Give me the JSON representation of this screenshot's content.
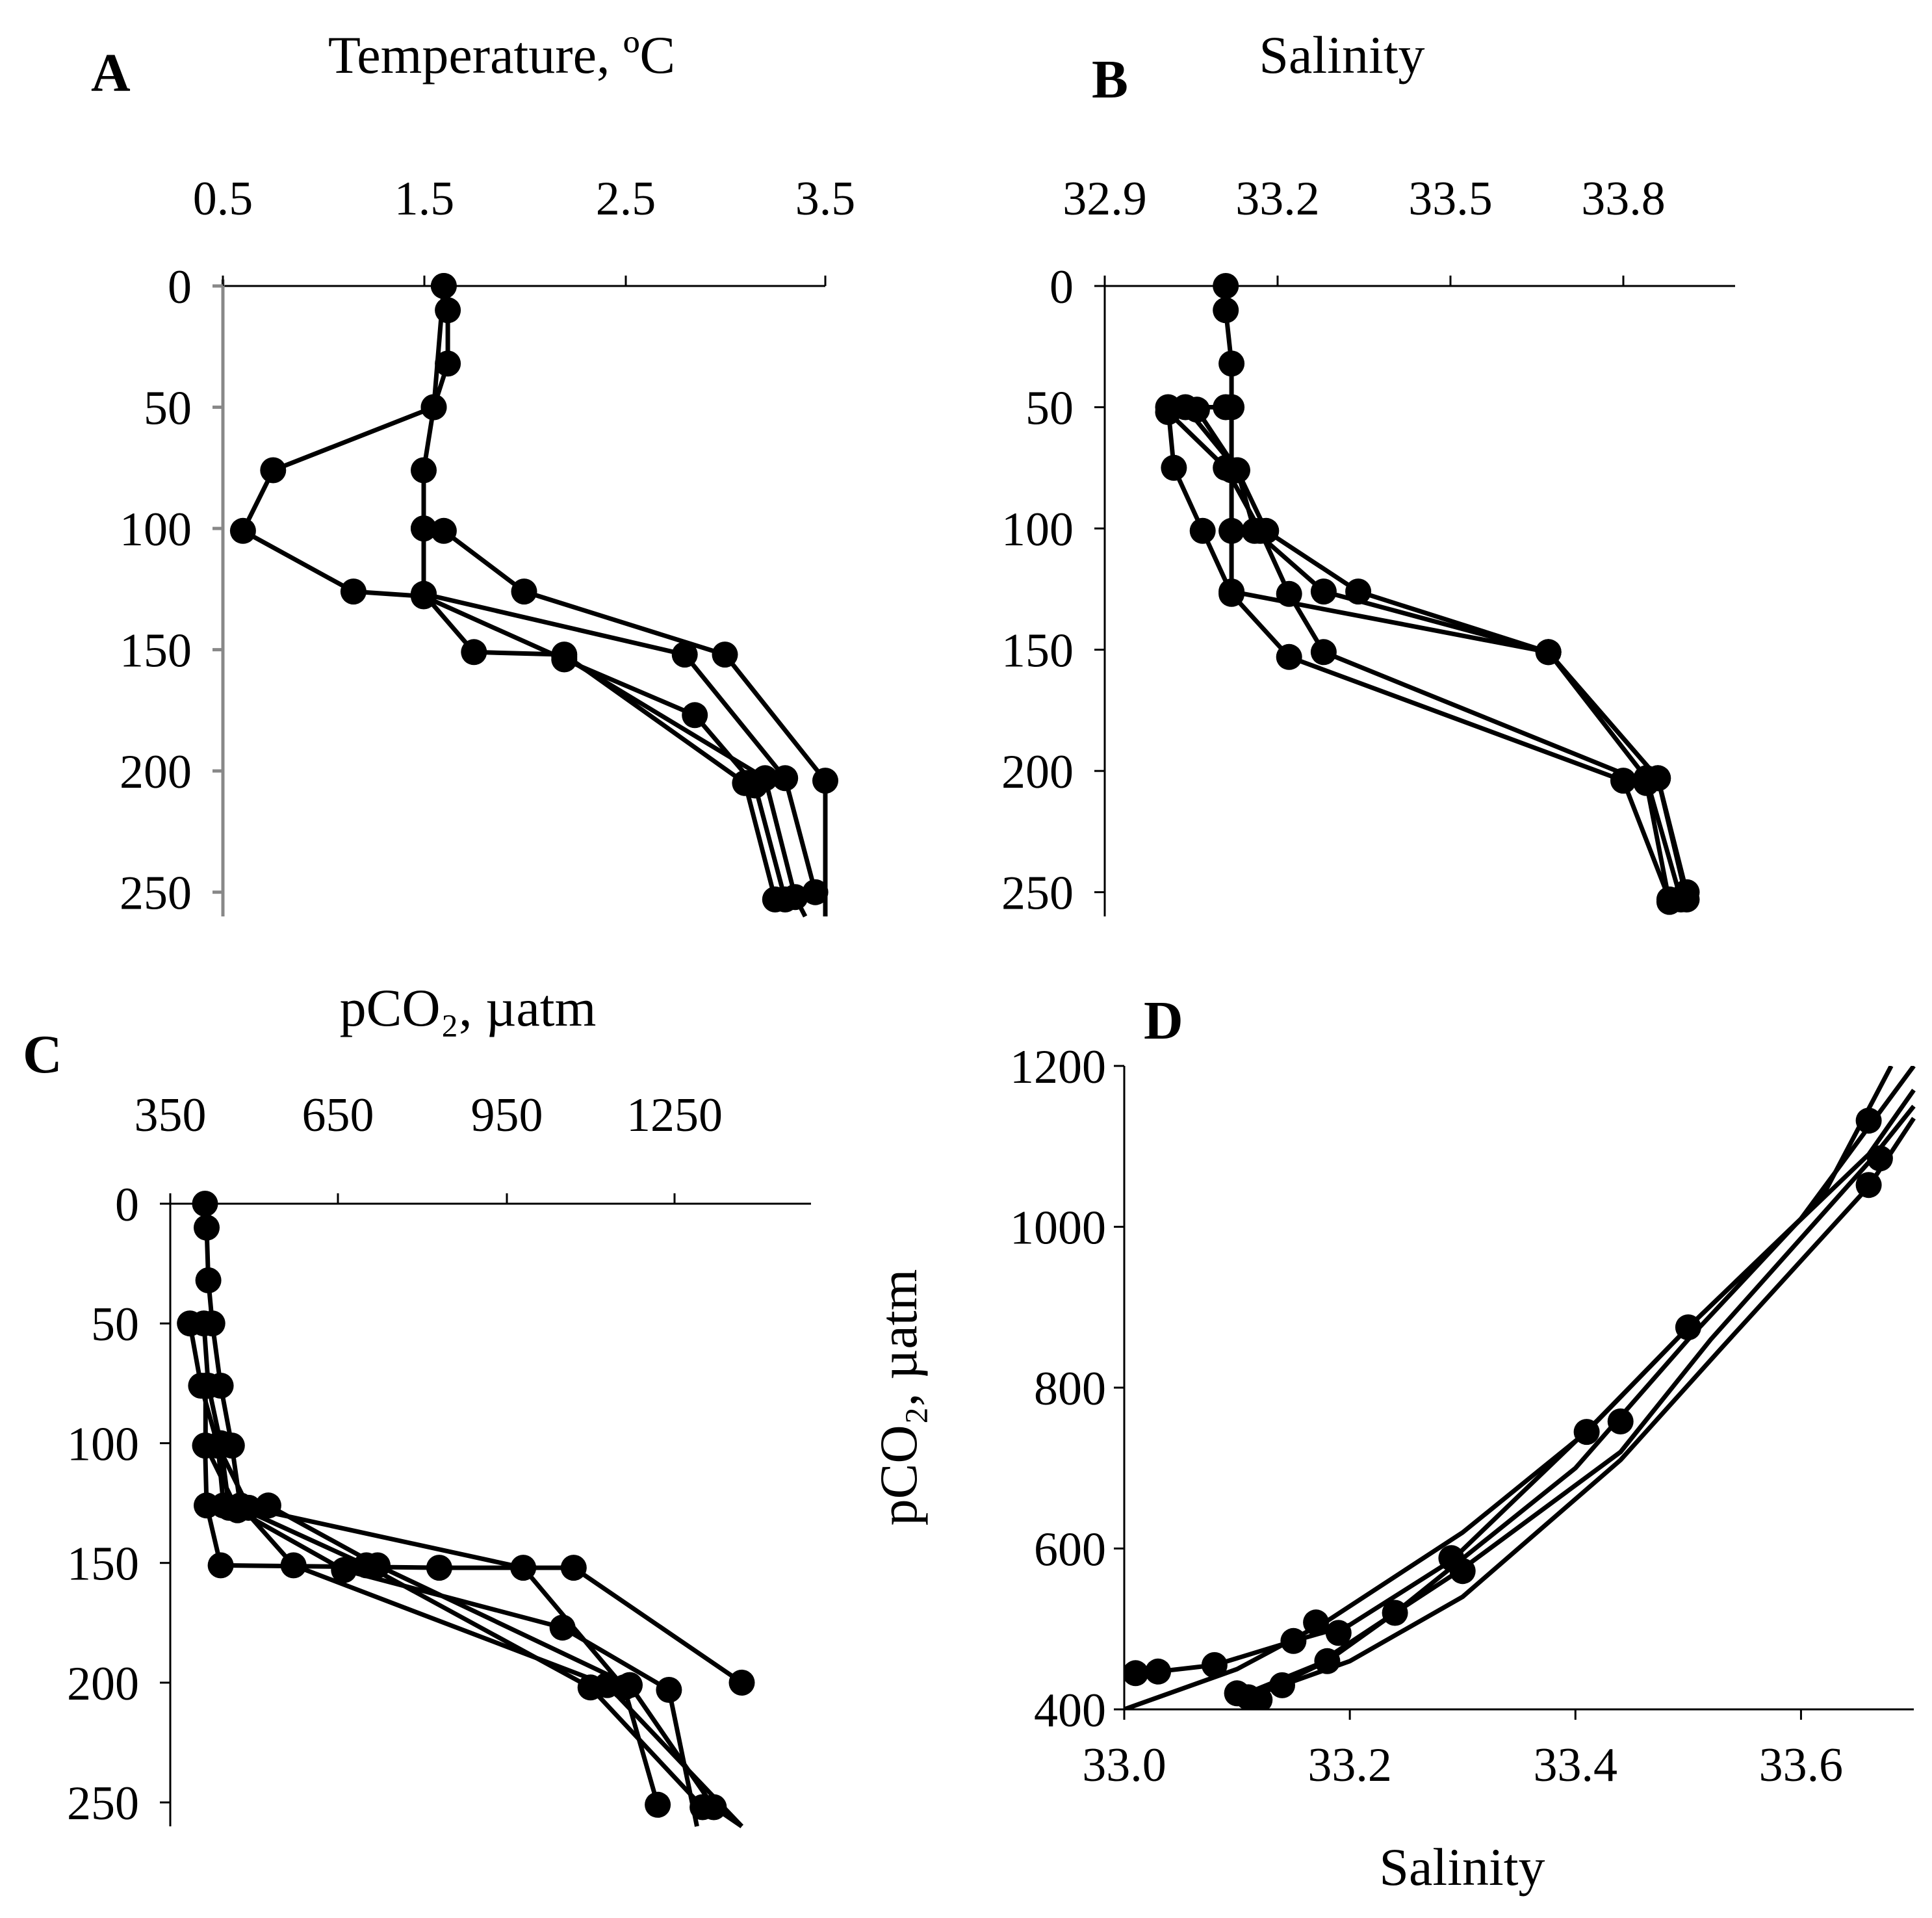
{
  "chart_data": [
    {
      "panel": "A",
      "type": "line",
      "title": "Temperature, ºC",
      "xticks": [
        "0.5",
        "1.5",
        "2.5",
        "3.5"
      ],
      "yticks": [
        "0",
        "50",
        "100",
        "150",
        "200",
        "250"
      ],
      "xlim": [
        0.5,
        3.5
      ],
      "ylim": [
        0,
        260
      ],
      "y_inverted": true,
      "series": [
        {
          "x": [
            1.6,
            1.62,
            1.62,
            1.55,
            1.5,
            1.5,
            1.5,
            2.8,
            3.3,
            3.45
          ],
          "y": [
            0,
            10,
            32,
            50,
            76,
            100,
            127,
            152,
            203,
            250
          ]
        },
        {
          "x": [
            1.6,
            1.55,
            0.75,
            0.6,
            1.15,
            1.5,
            2.2,
            2.85,
            3.15,
            3.3
          ],
          "y": [
            0,
            50,
            76,
            101,
            126,
            128,
            154,
            177,
            206,
            253
          ]
        },
        {
          "x": [
            1.5,
            1.6,
            2.0,
            3.0,
            3.5,
            3.5
          ],
          "y": [
            100,
            101,
            126,
            152,
            204,
            260
          ]
        },
        {
          "x": [
            1.5,
            1.75,
            2.2,
            3.1,
            3.25
          ],
          "y": [
            127,
            151,
            152,
            205,
            253
          ]
        },
        {
          "x": [
            2.2,
            3.2,
            3.35,
            3.4
          ],
          "y": [
            153,
            203,
            252,
            260
          ]
        }
      ]
    },
    {
      "panel": "B",
      "type": "line",
      "title": "Salinity",
      "xticks": [
        "32.9",
        "33.2",
        "33.5",
        "33.8"
      ],
      "yticks": [
        "0",
        "50",
        "100",
        "150",
        "200",
        "250"
      ],
      "xlim": [
        32.9,
        34.0
      ],
      "ylim": [
        0,
        260
      ],
      "y_inverted": true,
      "series": [
        {
          "x": [
            33.11,
            33.11,
            33.12,
            33.12,
            33.12,
            33.12,
            33.12,
            33.67,
            33.86,
            33.91
          ],
          "y": [
            0,
            10,
            32,
            50,
            76,
            101,
            126,
            151,
            203,
            250
          ]
        },
        {
          "x": [
            33.11,
            33.04,
            33.13,
            33.16,
            33.28,
            33.67,
            33.84,
            33.9
          ],
          "y": [
            50,
            50,
            76,
            101,
            126,
            151,
            203,
            253
          ]
        },
        {
          "x": [
            33.06,
            33.13,
            33.18,
            33.34,
            33.67,
            33.86,
            33.91
          ],
          "y": [
            51,
            76,
            101,
            126,
            151,
            203,
            253
          ]
        },
        {
          "x": [
            33.01,
            33.11,
            33.17,
            33.22,
            33.28,
            33.84,
            33.88
          ],
          "y": [
            52,
            75,
            101,
            127,
            151,
            205,
            254
          ]
        },
        {
          "x": [
            33.01,
            33.02,
            33.07,
            33.12,
            33.22,
            33.8,
            33.88
          ],
          "y": [
            50,
            75,
            101,
            127,
            153,
            204,
            253
          ]
        }
      ]
    },
    {
      "panel": "C",
      "type": "line",
      "title": "pCO₂, µatm",
      "xticks": [
        "350",
        "650",
        "950",
        "1250"
      ],
      "yticks": [
        "0",
        "50",
        "100",
        "150",
        "200",
        "250"
      ],
      "xlim": [
        350,
        1400
      ],
      "ylim": [
        0,
        260
      ],
      "y_inverted": true,
      "series": [
        {
          "x": [
            412,
            415,
            418,
            425,
            440,
            460,
            475,
            570,
            1130,
            1370
          ],
          "y": [
            0,
            10,
            32,
            50,
            76,
            101,
            126,
            151,
            201,
            260
          ]
        },
        {
          "x": [
            385,
            405,
            435,
            445,
            475,
            700,
            1100,
            1300
          ],
          "y": [
            50,
            76,
            101,
            126,
            127,
            151,
            202,
            252
          ]
        },
        {
          "x": [
            410,
            418,
            440,
            455,
            525,
            720,
            1170,
            1320,
            1370
          ],
          "y": [
            50,
            76,
            100,
            127,
            126,
            151,
            201,
            252,
            260
          ]
        },
        {
          "x": [
            413,
            413,
            470,
            660,
            1050,
            1240,
            1290
          ],
          "y": [
            76,
            101,
            128,
            153,
            177,
            203,
            260
          ]
        },
        {
          "x": [
            412,
            415,
            440,
            830,
            1070,
            1370
          ],
          "y": [
            101,
            126,
            151,
            152,
            152,
            200
          ]
        },
        {
          "x": [
            435,
            490,
            980,
            1160,
            1220
          ],
          "y": [
            101,
            127,
            152,
            202,
            251
          ]
        }
      ]
    },
    {
      "panel": "D",
      "type": "line",
      "title": "",
      "xlabel": "Salinity",
      "ylabel": "pCO₂, µatm",
      "xticks": [
        "33.0",
        "33.2",
        "33.4",
        "33.6"
      ],
      "yticks": [
        "400",
        "600",
        "800",
        "1000",
        "1200"
      ],
      "xlim": [
        33.0,
        33.7
      ],
      "ylim": [
        400,
        1200
      ],
      "series": [
        {
          "x": [
            33.0,
            33.1,
            33.18,
            33.3,
            33.41,
            33.5,
            33.6,
            33.7
          ],
          "y": [
            400,
            450,
            510,
            620,
            745,
            875,
            1010,
            1200
          ]
        },
        {
          "x": [
            33.1,
            33.12,
            33.14,
            33.2,
            33.3,
            33.44,
            33.53,
            33.66,
            33.7
          ],
          "y": [
            410,
            420,
            430,
            460,
            540,
            710,
            850,
            1050,
            1135
          ]
        },
        {
          "x": [
            33.1,
            33.17,
            33.24,
            33.3,
            33.44,
            33.52,
            33.66,
            33.7
          ],
          "y": [
            415,
            455,
            520,
            575,
            720,
            860,
            1080,
            1150
          ]
        },
        {
          "x": [
            33.01,
            33.03,
            33.08,
            33.15,
            33.2,
            33.29,
            33.42,
            33.5,
            33.66,
            33.7
          ],
          "y": [
            445,
            447,
            455,
            485,
            505,
            585,
            760,
            875,
            1090,
            1170
          ]
        },
        {
          "x": [
            33.11,
            33.12,
            33.18,
            33.24,
            33.4,
            33.5,
            33.62,
            33.68
          ],
          "y": [
            425,
            420,
            460,
            520,
            700,
            860,
            1040,
            1200
          ]
        }
      ],
      "markers": [
        {
          "x": 33.01,
          "y": 445
        },
        {
          "x": 33.03,
          "y": 447
        },
        {
          "x": 33.08,
          "y": 455
        },
        {
          "x": 33.1,
          "y": 420
        },
        {
          "x": 33.11,
          "y": 415
        },
        {
          "x": 33.12,
          "y": 412
        },
        {
          "x": 33.14,
          "y": 430
        },
        {
          "x": 33.15,
          "y": 485
        },
        {
          "x": 33.18,
          "y": 460
        },
        {
          "x": 33.17,
          "y": 508
        },
        {
          "x": 33.19,
          "y": 495
        },
        {
          "x": 33.24,
          "y": 520
        },
        {
          "x": 33.29,
          "y": 588
        },
        {
          "x": 33.3,
          "y": 572
        },
        {
          "x": 33.41,
          "y": 745
        },
        {
          "x": 33.44,
          "y": 758
        },
        {
          "x": 33.5,
          "y": 875
        },
        {
          "x": 33.66,
          "y": 1132
        },
        {
          "x": 33.67,
          "y": 1085
        },
        {
          "x": 33.66,
          "y": 1052
        }
      ]
    }
  ]
}
